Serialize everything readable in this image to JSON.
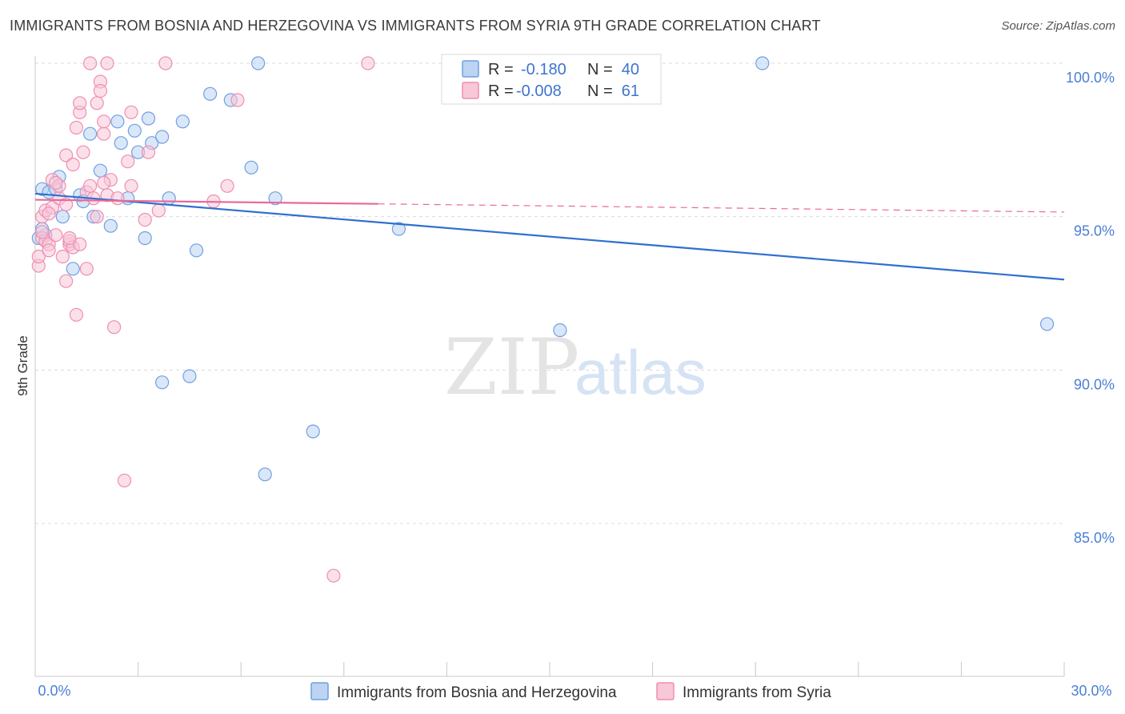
{
  "title": "IMMIGRANTS FROM BOSNIA AND HERZEGOVINA VS IMMIGRANTS FROM SYRIA 9TH GRADE CORRELATION CHART",
  "source": "Source: ZipAtlas.com",
  "watermark": {
    "zip": "ZIP",
    "atlas": "atlas"
  },
  "legend_box": {
    "rows": [
      {
        "r_label": "R =",
        "r_value": "-0.180",
        "n_label": "N =",
        "n_value": "40"
      },
      {
        "r_label": "R =",
        "r_value": "-0.008",
        "n_label": "N =",
        "n_value": "61"
      }
    ]
  },
  "chart_data": {
    "type": "scatter",
    "xlabel": "",
    "ylabel": "9th Grade",
    "xlim": [
      0,
      30
    ],
    "ylim": [
      80.5,
      101
    ],
    "x_tick_labels": [
      "0.0%",
      "30.0%"
    ],
    "y_ticks": [
      {
        "value": 100,
        "label": "100.0%"
      },
      {
        "value": 95,
        "label": "95.0%"
      },
      {
        "value": 90,
        "label": "90.0%"
      },
      {
        "value": 85,
        "label": "85.0%"
      }
    ],
    "grid": true,
    "legend_position": "bottom",
    "series": [
      {
        "name": "Immigrants from Bosnia and Herzegovina",
        "color": "#6fa0e0",
        "fill": "#bcd3f3",
        "line_color": "#2f6fcf",
        "trend": {
          "x": [
            0,
            30
          ],
          "y": [
            95.75,
            92.95
          ],
          "dashed_from": null
        },
        "points": [
          [
            0.2,
            95.9
          ],
          [
            0.4,
            95.8
          ],
          [
            0.6,
            95.9
          ],
          [
            0.7,
            96.3
          ],
          [
            0.8,
            95.0
          ],
          [
            1.1,
            93.3
          ],
          [
            1.3,
            95.7
          ],
          [
            1.4,
            95.5
          ],
          [
            1.6,
            97.7
          ],
          [
            1.7,
            95.0
          ],
          [
            1.9,
            96.5
          ],
          [
            2.2,
            94.7
          ],
          [
            2.4,
            98.1
          ],
          [
            2.5,
            97.4
          ],
          [
            2.7,
            95.6
          ],
          [
            2.9,
            97.8
          ],
          [
            3.0,
            97.1
          ],
          [
            3.2,
            94.3
          ],
          [
            3.3,
            98.2
          ],
          [
            3.4,
            97.4
          ],
          [
            3.7,
            97.6
          ],
          [
            3.7,
            89.6
          ],
          [
            3.9,
            95.6
          ],
          [
            4.3,
            98.1
          ],
          [
            4.5,
            89.8
          ],
          [
            4.7,
            93.9
          ],
          [
            5.1,
            99.0
          ],
          [
            5.7,
            98.8
          ],
          [
            6.3,
            96.6
          ],
          [
            6.5,
            100.0
          ],
          [
            6.7,
            86.6
          ],
          [
            7.0,
            95.6
          ],
          [
            8.1,
            88.0
          ],
          [
            10.6,
            94.6
          ],
          [
            15.3,
            91.3
          ],
          [
            21.2,
            100.0
          ],
          [
            29.5,
            91.5
          ],
          [
            0.1,
            94.3
          ],
          [
            0.3,
            94.4
          ],
          [
            0.2,
            94.6
          ]
        ]
      },
      {
        "name": "Immigrants from Syria",
        "color": "#ee8fb0",
        "fill": "#f8c7d8",
        "line_color": "#e8699a",
        "trend": {
          "x": [
            0,
            30
          ],
          "y": [
            95.55,
            95.15
          ],
          "dashed_from": 10.0
        },
        "points": [
          [
            0.1,
            93.4
          ],
          [
            0.1,
            93.7
          ],
          [
            0.2,
            94.3
          ],
          [
            0.2,
            95.0
          ],
          [
            0.3,
            95.2
          ],
          [
            0.3,
            94.2
          ],
          [
            0.4,
            94.1
          ],
          [
            0.4,
            93.9
          ],
          [
            0.5,
            95.3
          ],
          [
            0.5,
            96.2
          ],
          [
            0.6,
            94.4
          ],
          [
            0.7,
            95.6
          ],
          [
            0.7,
            96.0
          ],
          [
            0.8,
            93.7
          ],
          [
            0.9,
            95.4
          ],
          [
            0.9,
            97.0
          ],
          [
            1.0,
            94.1
          ],
          [
            1.0,
            94.2
          ],
          [
            1.1,
            96.7
          ],
          [
            1.1,
            94.0
          ],
          [
            1.2,
            97.9
          ],
          [
            1.2,
            91.8
          ],
          [
            1.3,
            98.4
          ],
          [
            1.3,
            94.1
          ],
          [
            1.4,
            97.1
          ],
          [
            1.5,
            95.8
          ],
          [
            1.5,
            93.3
          ],
          [
            1.6,
            96.0
          ],
          [
            1.7,
            95.6
          ],
          [
            1.8,
            98.7
          ],
          [
            1.8,
            95.0
          ],
          [
            1.9,
            99.4
          ],
          [
            1.9,
            99.1
          ],
          [
            2.0,
            97.7
          ],
          [
            2.0,
            98.1
          ],
          [
            2.1,
            95.7
          ],
          [
            2.1,
            100.0
          ],
          [
            2.2,
            96.2
          ],
          [
            2.3,
            91.4
          ],
          [
            2.4,
            95.6
          ],
          [
            2.6,
            86.4
          ],
          [
            2.7,
            96.8
          ],
          [
            2.8,
            98.4
          ],
          [
            3.2,
            94.9
          ],
          [
            3.3,
            97.1
          ],
          [
            3.6,
            95.2
          ],
          [
            3.8,
            100.0
          ],
          [
            5.2,
            95.5
          ],
          [
            5.6,
            96.0
          ],
          [
            5.9,
            98.8
          ],
          [
            8.7,
            83.3
          ],
          [
            9.7,
            100.0
          ],
          [
            1.6,
            100.0
          ],
          [
            0.9,
            92.9
          ],
          [
            0.6,
            96.1
          ],
          [
            0.4,
            95.1
          ],
          [
            0.2,
            94.5
          ],
          [
            1.3,
            98.7
          ],
          [
            2.0,
            96.1
          ],
          [
            2.8,
            96.0
          ],
          [
            1.0,
            94.3
          ]
        ]
      }
    ]
  }
}
